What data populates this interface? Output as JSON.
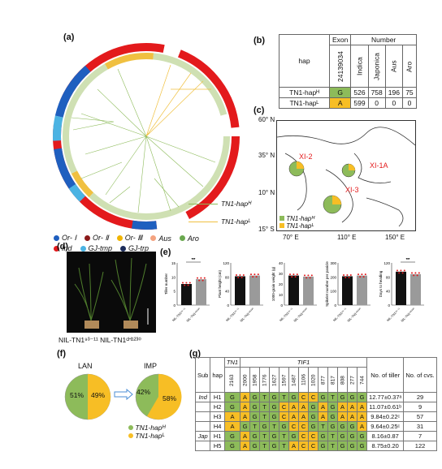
{
  "panel_labels": {
    "a": "(a)",
    "b": "(b)",
    "c": "(c)",
    "d": "(d)",
    "e": "(e)",
    "f": "(f)",
    "g": "(g)"
  },
  "tree_legend": {
    "subpops": [
      {
        "label": "Or- Ⅰ",
        "color": "#1f5fbf"
      },
      {
        "label": "Or- Ⅱ",
        "color": "#8b1a1a"
      },
      {
        "label": "Or- Ⅲ",
        "color": "#f0b400"
      },
      {
        "label": "Aus",
        "color": "#f4a380"
      },
      {
        "label": "Aro",
        "color": "#6aa84f"
      },
      {
        "label": "Ind",
        "color": "#e31a1c"
      },
      {
        "label": "GJ-tmp",
        "color": "#4bb3e3"
      },
      {
        "label": "GJ-trp",
        "color": "#1c2c5a"
      }
    ],
    "haplotypes": [
      {
        "label": "TN1-hapᴴ",
        "color": "#8dbb5a"
      },
      {
        "label": "TN1-hapᴸ",
        "color": "#f0c040"
      }
    ]
  },
  "table_b": {
    "col_hap": "hap",
    "col_exon": "Exon",
    "col_number": "Number",
    "pos": "24139034",
    "subs": [
      "Indica",
      "Japonica",
      "Aus",
      "Aro"
    ],
    "rows": [
      {
        "hap": "TN1-hapᴴ",
        "allele": "G",
        "values": [
          "526",
          "758",
          "196",
          "75"
        ]
      },
      {
        "hap": "TN1-hapᴸ",
        "allele": "A",
        "values": [
          "599",
          "0",
          "0",
          "0"
        ]
      }
    ]
  },
  "map": {
    "lat": [
      "60° N",
      "35° N",
      "10° N",
      "15° S"
    ],
    "lon": [
      "70° E",
      "110° E",
      "150° E"
    ],
    "regions": [
      "XI-2",
      "XI-1A",
      "XI-3"
    ],
    "legend": [
      "TN1-hapᴴ",
      "TN1-hapᴸ"
    ]
  },
  "panel_d": {
    "left": "NIL-TN1⁹³⁻¹¹",
    "right": "NIL-TN1ᶜᴴ¹²³⁰",
    "mid": "NIL-TN1⁹³⁻¹¹ NIL-TN1ᶜᴴ¹²³⁰"
  },
  "panel_e": {
    "charts": [
      {
        "ylabel": "Tiller number",
        "ymax": 15,
        "ticks": [
          "0",
          "5",
          "10",
          "15"
        ],
        "values": [
          7.5,
          9.2
        ],
        "sig": "**"
      },
      {
        "ylabel": "Plant height (cm)",
        "ymax": 120,
        "ticks": [
          "0",
          "40",
          "80",
          "120"
        ],
        "values": [
          82,
          84
        ],
        "sig": ""
      },
      {
        "ylabel": "1000-grain weight (g)",
        "ymax": 40,
        "ticks": [
          "0",
          "10",
          "20",
          "30",
          "40"
        ],
        "values": [
          28,
          27
        ],
        "sig": ""
      },
      {
        "ylabel": "Spikelet number per panicle",
        "ymax": 300,
        "ticks": [
          "0",
          "100",
          "200",
          "300"
        ],
        "values": [
          205,
          210
        ],
        "sig": ""
      },
      {
        "ylabel": "Days to heading",
        "ymax": 120,
        "ticks": [
          "0",
          "40",
          "80",
          "120"
        ],
        "values": [
          95,
          88
        ],
        "sig": "**"
      }
    ],
    "xlabels": [
      "NIL-TN1⁹³⁻¹¹",
      "NIL-TN1ᶜᴴ¹²³⁰"
    ]
  },
  "chart_data": [
    {
      "type": "bar",
      "categories": [
        "NIL-TN1⁹³⁻¹¹",
        "NIL-TN1ᶜᴴ¹²³⁰"
      ],
      "values": [
        7.5,
        9.2
      ],
      "ylabel": "Tiller number",
      "ylim": [
        0,
        15
      ]
    },
    {
      "type": "bar",
      "categories": [
        "NIL-TN1⁹³⁻¹¹",
        "NIL-TN1ᶜᴴ¹²³⁰"
      ],
      "values": [
        82,
        84
      ],
      "ylabel": "Plant height (cm)",
      "ylim": [
        0,
        120
      ]
    },
    {
      "type": "bar",
      "categories": [
        "NIL-TN1⁹³⁻¹¹",
        "NIL-TN1ᶜᴴ¹²³⁰"
      ],
      "values": [
        28,
        27
      ],
      "ylabel": "1000-grain weight (g)",
      "ylim": [
        0,
        40
      ]
    },
    {
      "type": "bar",
      "categories": [
        "NIL-TN1⁹³⁻¹¹",
        "NIL-TN1ᶜᴴ¹²³⁰"
      ],
      "values": [
        205,
        210
      ],
      "ylabel": "Spikelet number per panicle",
      "ylim": [
        0,
        300
      ]
    },
    {
      "type": "bar",
      "categories": [
        "NIL-TN1⁹³⁻¹¹",
        "NIL-TN1ᶜᴴ¹²³⁰"
      ],
      "values": [
        95,
        88
      ],
      "ylabel": "Days to heading",
      "ylim": [
        0,
        120
      ]
    },
    {
      "type": "pie",
      "title": "LAN",
      "categories": [
        "TN1-hapᴴ",
        "TN1-hapᴸ"
      ],
      "values": [
        51,
        49
      ]
    },
    {
      "type": "pie",
      "title": "IMP",
      "categories": [
        "TN1-hapᴴ",
        "TN1-hapᴸ"
      ],
      "values": [
        42,
        58
      ]
    }
  ],
  "panel_f": {
    "lan": "LAN",
    "imp": "IMP",
    "lan_vals": [
      "51%",
      "49%"
    ],
    "imp_vals": [
      "42%",
      "58%"
    ],
    "legend": [
      "TN1-hapᴴ",
      "TN1-hapᴸ"
    ]
  },
  "table_g": {
    "h_sub": "Sub",
    "h_hap": "hap",
    "h_tn1": "TN1",
    "h_tif1": "TIF1",
    "h_tiller": "No. of tiller",
    "h_cvs": "No. of cvs.",
    "positions": [
      "2163",
      "2000",
      "1958",
      "1776",
      "1627",
      "1597",
      "1487",
      "1106",
      "1020",
      "877",
      "817",
      "808",
      "277",
      "744"
    ],
    "rows": [
      {
        "sub": "Ind",
        "hap": "H1",
        "bases": [
          "G",
          "A",
          "G",
          "T",
          "G",
          "T",
          "G",
          "C",
          "C",
          "G",
          "T",
          "G",
          "G",
          "G"
        ],
        "tiller": "12.77±0.37ᵃ",
        "cvs": "29"
      },
      {
        "sub": "",
        "hap": "H2",
        "bases": [
          "G",
          "A",
          "G",
          "T",
          "G",
          "C",
          "A",
          "A",
          "G",
          "A",
          "G",
          "A",
          "A",
          "A"
        ],
        "tiller": "11.07±0.61ᵇ",
        "cvs": "9"
      },
      {
        "sub": "",
        "hap": "H3",
        "bases": [
          "A",
          "A",
          "G",
          "T",
          "G",
          "C",
          "A",
          "A",
          "G",
          "A",
          "G",
          "A",
          "A",
          "A"
        ],
        "tiller": "9.84±0.22ᶜ",
        "cvs": "57"
      },
      {
        "sub": "",
        "hap": "H4",
        "bases": [
          "A",
          "G",
          "T",
          "G",
          "T",
          "G",
          "C",
          "C",
          "G",
          "T",
          "G",
          "G",
          "G",
          "A"
        ],
        "tiller": "9.64±0.25ᶜ",
        "cvs": "31"
      },
      {
        "sub": "Jap",
        "hap": "H1",
        "bases": [
          "G",
          "A",
          "G",
          "T",
          "G",
          "T",
          "G",
          "C",
          "C",
          "G",
          "T",
          "G",
          "G",
          "G"
        ],
        "tiller": "8.16±0.87",
        "cvs": "7"
      },
      {
        "sub": "",
        "hap": "H5",
        "bases": [
          "G",
          "A",
          "G",
          "T",
          "G",
          "T",
          "A",
          "C",
          "C",
          "G",
          "T",
          "G",
          "G",
          "G"
        ],
        "tiller": "8.75±0.20",
        "cvs": "122"
      }
    ]
  }
}
